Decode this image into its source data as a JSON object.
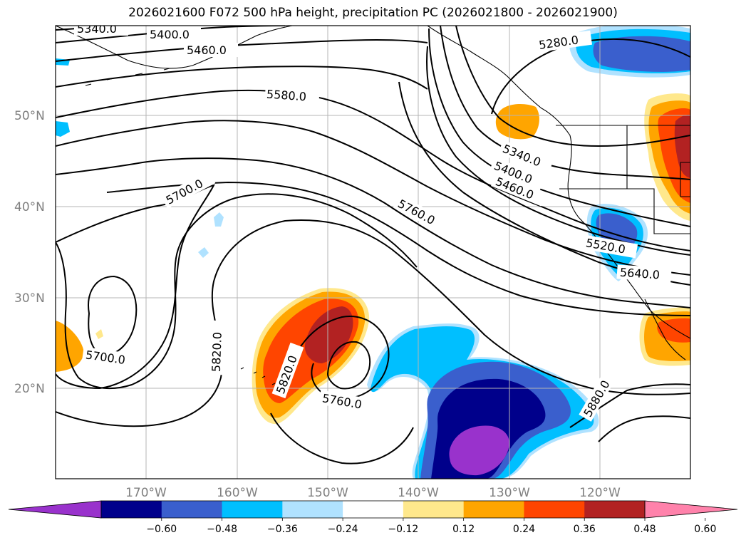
{
  "title": "2026021600 F072 500 hPa height, precipitation PC (2026021800 - 2026021900)",
  "map": {
    "lat_labels": [
      "50°N",
      "40°N",
      "30°N",
      "20°N"
    ],
    "lon_labels": [
      "170°W",
      "160°W",
      "150°W",
      "140°W",
      "130°W",
      "120°W"
    ],
    "contour_labels": [
      "5340.0",
      "5400.0",
      "5460.0",
      "5580.0",
      "5280.0",
      "5700.0",
      "5340.0",
      "5400.0",
      "5460.0",
      "5760.0",
      "5520.0",
      "5640.0",
      "5820.0",
      "5700.0",
      "5820.0",
      "5760.0",
      "5880.0"
    ]
  },
  "colorbar": {
    "tick_labels": [
      "−0.60",
      "−0.48",
      "−0.36",
      "−0.24",
      "−0.12",
      "0.12",
      "0.24",
      "0.36",
      "0.48",
      "0.60"
    ],
    "colors": [
      "#9932cc",
      "#00008b",
      "#3a5fcd",
      "#00bfff",
      "#b0e2ff",
      "#ffffff",
      "#ffe88c",
      "#ffa500",
      "#ff4500",
      "#b22222",
      "#ff82ab"
    ]
  }
}
